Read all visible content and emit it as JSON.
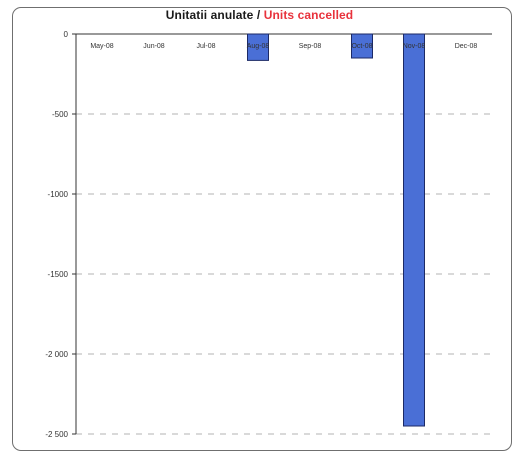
{
  "chart_data": {
    "type": "bar",
    "title": "Unitatii anulate",
    "title_separator": "/",
    "title_en": "Units cancelled",
    "xlabel": "",
    "ylabel": "",
    "categories": [
      "May-08",
      "Jun-08",
      "Jul-08",
      "Aug-08",
      "Sep-08",
      "Oct-08",
      "Nov-08",
      "Dec-08"
    ],
    "values": [
      0,
      0,
      0,
      -165,
      0,
      -150,
      -2450,
      0
    ],
    "ylim": [
      -2500,
      0
    ],
    "yticks": [
      0,
      -500,
      -1000,
      -1500,
      -2000,
      -2500
    ],
    "ytick_labels": [
      "0",
      "-500",
      "-1000",
      "-1500",
      "-2 000",
      "-2 500"
    ],
    "grid": "horizontal dashed",
    "legend": "none",
    "bar_color": "#4a6fd6",
    "bar_edge_color": "#1c2a66",
    "title_accent_color": "#e8323c"
  }
}
